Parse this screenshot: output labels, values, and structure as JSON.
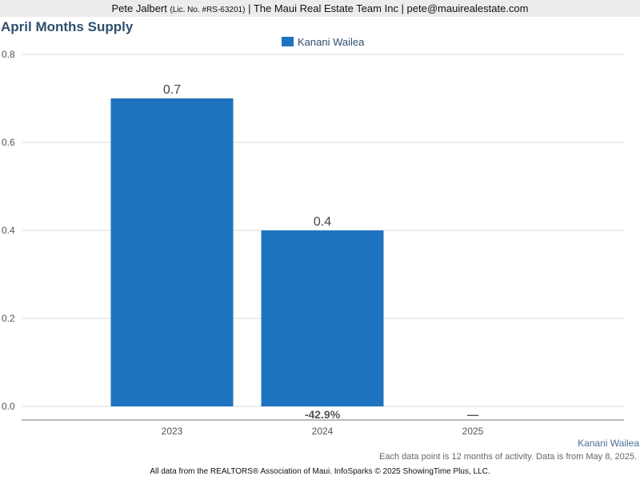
{
  "header": {
    "agent_name": "Pete Jalbert",
    "license": "(Lic. No. #RS-63201)",
    "rest": "| The Maui Real Estate Team Inc | pete@mauirealestate.com"
  },
  "chart_data": {
    "type": "bar",
    "title": "April Months Supply",
    "categories": [
      "2023",
      "2024",
      "2025"
    ],
    "series": [
      {
        "name": "Kanani Wailea",
        "values": [
          0.7,
          0.4,
          null
        ],
        "color": "#1e73be"
      }
    ],
    "data_labels": [
      "0.7",
      "0.4",
      ""
    ],
    "change_labels": [
      "",
      "-42.9%",
      "—"
    ],
    "yticks": [
      "0.0",
      "0.2",
      "0.4",
      "0.6",
      "0.8"
    ],
    "ylim": [
      0,
      0.8
    ],
    "grid": true,
    "legend_position": "top-center"
  },
  "source_name": "Kanani Wailea",
  "note": "Each data point is 12 months of activity. Data is from May 8, 2025.",
  "footer": "All data from the REALTORS® Association of Maui. InfoSparks © 2025 ShowingTime Plus, LLC."
}
